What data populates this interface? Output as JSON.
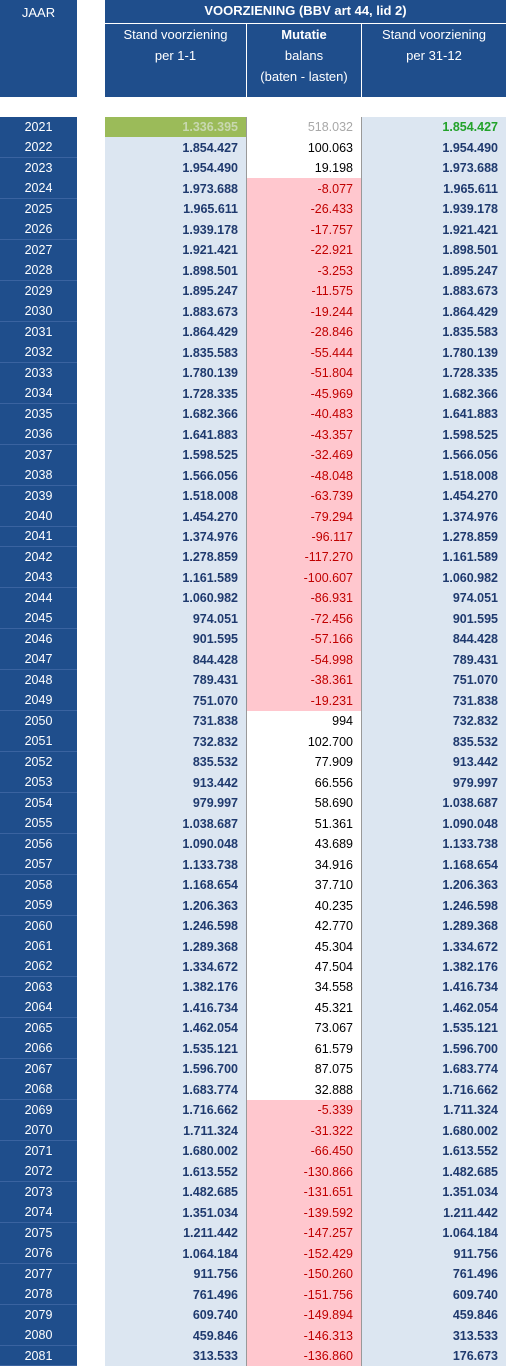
{
  "header": {
    "jaar": "JAAR",
    "title": "VOORZIENING (BBV art 44, lid 2)",
    "columns": [
      [
        "Stand voorziening",
        "per 1-1"
      ],
      [
        "Mutatie",
        "balans",
        "(baten - lasten)"
      ],
      [
        "Stand voorziening",
        "per 31-12"
      ]
    ]
  },
  "table": {
    "rows": [
      [
        "2021",
        "1.336.395",
        "518.032",
        "1.854.427"
      ],
      [
        "2022",
        "1.854.427",
        "100.063",
        "1.954.490"
      ],
      [
        "2023",
        "1.954.490",
        "19.198",
        "1.973.688"
      ],
      [
        "2024",
        "1.973.688",
        "-8.077",
        "1.965.611"
      ],
      [
        "2025",
        "1.965.611",
        "-26.433",
        "1.939.178"
      ],
      [
        "2026",
        "1.939.178",
        "-17.757",
        "1.921.421"
      ],
      [
        "2027",
        "1.921.421",
        "-22.921",
        "1.898.501"
      ],
      [
        "2028",
        "1.898.501",
        "-3.253",
        "1.895.247"
      ],
      [
        "2029",
        "1.895.247",
        "-11.575",
        "1.883.673"
      ],
      [
        "2030",
        "1.883.673",
        "-19.244",
        "1.864.429"
      ],
      [
        "2031",
        "1.864.429",
        "-28.846",
        "1.835.583"
      ],
      [
        "2032",
        "1.835.583",
        "-55.444",
        "1.780.139"
      ],
      [
        "2033",
        "1.780.139",
        "-51.804",
        "1.728.335"
      ],
      [
        "2034",
        "1.728.335",
        "-45.969",
        "1.682.366"
      ],
      [
        "2035",
        "1.682.366",
        "-40.483",
        "1.641.883"
      ],
      [
        "2036",
        "1.641.883",
        "-43.357",
        "1.598.525"
      ],
      [
        "2037",
        "1.598.525",
        "-32.469",
        "1.566.056"
      ],
      [
        "2038",
        "1.566.056",
        "-48.048",
        "1.518.008"
      ],
      [
        "2039",
        "1.518.008",
        "-63.739",
        "1.454.270"
      ],
      [
        "2040",
        "1.454.270",
        "-79.294",
        "1.374.976"
      ],
      [
        "2041",
        "1.374.976",
        "-96.117",
        "1.278.859"
      ],
      [
        "2042",
        "1.278.859",
        "-117.270",
        "1.161.589"
      ],
      [
        "2043",
        "1.161.589",
        "-100.607",
        "1.060.982"
      ],
      [
        "2044",
        "1.060.982",
        "-86.931",
        "974.051"
      ],
      [
        "2045",
        "974.051",
        "-72.456",
        "901.595"
      ],
      [
        "2046",
        "901.595",
        "-57.166",
        "844.428"
      ],
      [
        "2047",
        "844.428",
        "-54.998",
        "789.431"
      ],
      [
        "2048",
        "789.431",
        "-38.361",
        "751.070"
      ],
      [
        "2049",
        "751.070",
        "-19.231",
        "731.838"
      ],
      [
        "2050",
        "731.838",
        "994",
        "732.832"
      ],
      [
        "2051",
        "732.832",
        "102.700",
        "835.532"
      ],
      [
        "2052",
        "835.532",
        "77.909",
        "913.442"
      ],
      [
        "2053",
        "913.442",
        "66.556",
        "979.997"
      ],
      [
        "2054",
        "979.997",
        "58.690",
        "1.038.687"
      ],
      [
        "2055",
        "1.038.687",
        "51.361",
        "1.090.048"
      ],
      [
        "2056",
        "1.090.048",
        "43.689",
        "1.133.738"
      ],
      [
        "2057",
        "1.133.738",
        "34.916",
        "1.168.654"
      ],
      [
        "2058",
        "1.168.654",
        "37.710",
        "1.206.363"
      ],
      [
        "2059",
        "1.206.363",
        "40.235",
        "1.246.598"
      ],
      [
        "2060",
        "1.246.598",
        "42.770",
        "1.289.368"
      ],
      [
        "2061",
        "1.289.368",
        "45.304",
        "1.334.672"
      ],
      [
        "2062",
        "1.334.672",
        "47.504",
        "1.382.176"
      ],
      [
        "2063",
        "1.382.176",
        "34.558",
        "1.416.734"
      ],
      [
        "2064",
        "1.416.734",
        "45.321",
        "1.462.054"
      ],
      [
        "2065",
        "1.462.054",
        "73.067",
        "1.535.121"
      ],
      [
        "2066",
        "1.535.121",
        "61.579",
        "1.596.700"
      ],
      [
        "2067",
        "1.596.700",
        "87.075",
        "1.683.774"
      ],
      [
        "2068",
        "1.683.774",
        "32.888",
        "1.716.662"
      ],
      [
        "2069",
        "1.716.662",
        "-5.339",
        "1.711.324"
      ],
      [
        "2070",
        "1.711.324",
        "-31.322",
        "1.680.002"
      ],
      [
        "2071",
        "1.680.002",
        "-66.450",
        "1.613.552"
      ],
      [
        "2072",
        "1.613.552",
        "-130.866",
        "1.482.685"
      ],
      [
        "2073",
        "1.482.685",
        "-131.651",
        "1.351.034"
      ],
      [
        "2074",
        "1.351.034",
        "-139.592",
        "1.211.442"
      ],
      [
        "2075",
        "1.211.442",
        "-147.257",
        "1.064.184"
      ],
      [
        "2076",
        "1.064.184",
        "-152.429",
        "911.756"
      ],
      [
        "2077",
        "911.756",
        "-150.260",
        "761.496"
      ],
      [
        "2078",
        "761.496",
        "-151.756",
        "609.740"
      ],
      [
        "2079",
        "609.740",
        "-149.894",
        "459.846"
      ],
      [
        "2080",
        "459.846",
        "-146.313",
        "313.533"
      ],
      [
        "2081",
        "313.533",
        "-136.860",
        "176.673"
      ]
    ]
  }
}
